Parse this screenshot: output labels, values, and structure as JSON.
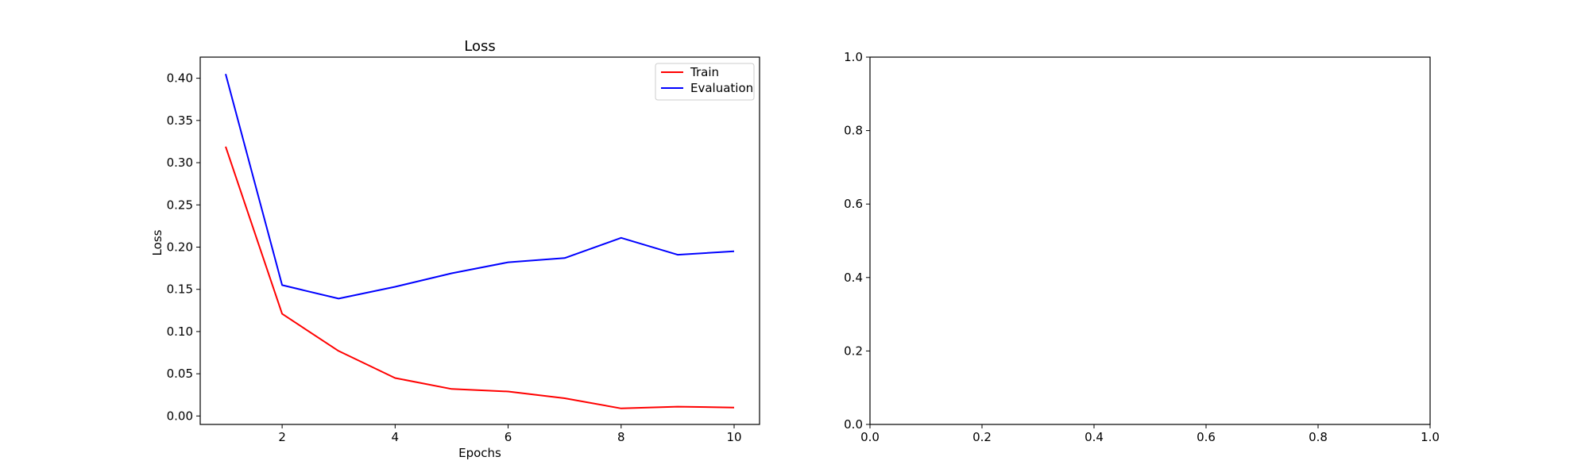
{
  "chart_data": [
    {
      "type": "line",
      "title": "Loss",
      "xlabel": "Epochs",
      "ylabel": "Loss",
      "x": [
        1,
        2,
        3,
        4,
        5,
        6,
        7,
        8,
        9,
        10
      ],
      "xlim": [
        0.55,
        10.45
      ],
      "ylim": [
        -0.01,
        0.425
      ],
      "xticks": [
        2,
        4,
        6,
        8,
        10
      ],
      "yticks": [
        0.0,
        0.05,
        0.1,
        0.15,
        0.2,
        0.25,
        0.3,
        0.35,
        0.4
      ],
      "ytick_labels": [
        "0.00",
        "0.05",
        "0.10",
        "0.15",
        "0.20",
        "0.25",
        "0.30",
        "0.35",
        "0.40"
      ],
      "xtick_labels": [
        "2",
        "4",
        "6",
        "8",
        "10"
      ],
      "grid": false,
      "legend_position": "top-right",
      "series": [
        {
          "name": "Train",
          "color": "#ff0000",
          "values": [
            0.319,
            0.121,
            0.077,
            0.045,
            0.032,
            0.029,
            0.021,
            0.009,
            0.011,
            0.01
          ]
        },
        {
          "name": "Evaluation",
          "color": "#0000ff",
          "values": [
            0.405,
            0.155,
            0.139,
            0.153,
            0.169,
            0.182,
            0.187,
            0.211,
            0.191,
            0.195
          ]
        }
      ]
    },
    {
      "type": "line",
      "title": "",
      "xlabel": "",
      "ylabel": "",
      "xlim": [
        0.0,
        1.0
      ],
      "ylim": [
        0.0,
        1.0
      ],
      "xticks": [
        0.0,
        0.2,
        0.4,
        0.6,
        0.8,
        1.0
      ],
      "yticks": [
        0.0,
        0.2,
        0.4,
        0.6,
        0.8,
        1.0
      ],
      "xtick_labels": [
        "0.0",
        "0.2",
        "0.4",
        "0.6",
        "0.8",
        "1.0"
      ],
      "ytick_labels": [
        "0.0",
        "0.2",
        "0.4",
        "0.6",
        "0.8",
        "1.0"
      ],
      "grid": false,
      "series": []
    }
  ]
}
